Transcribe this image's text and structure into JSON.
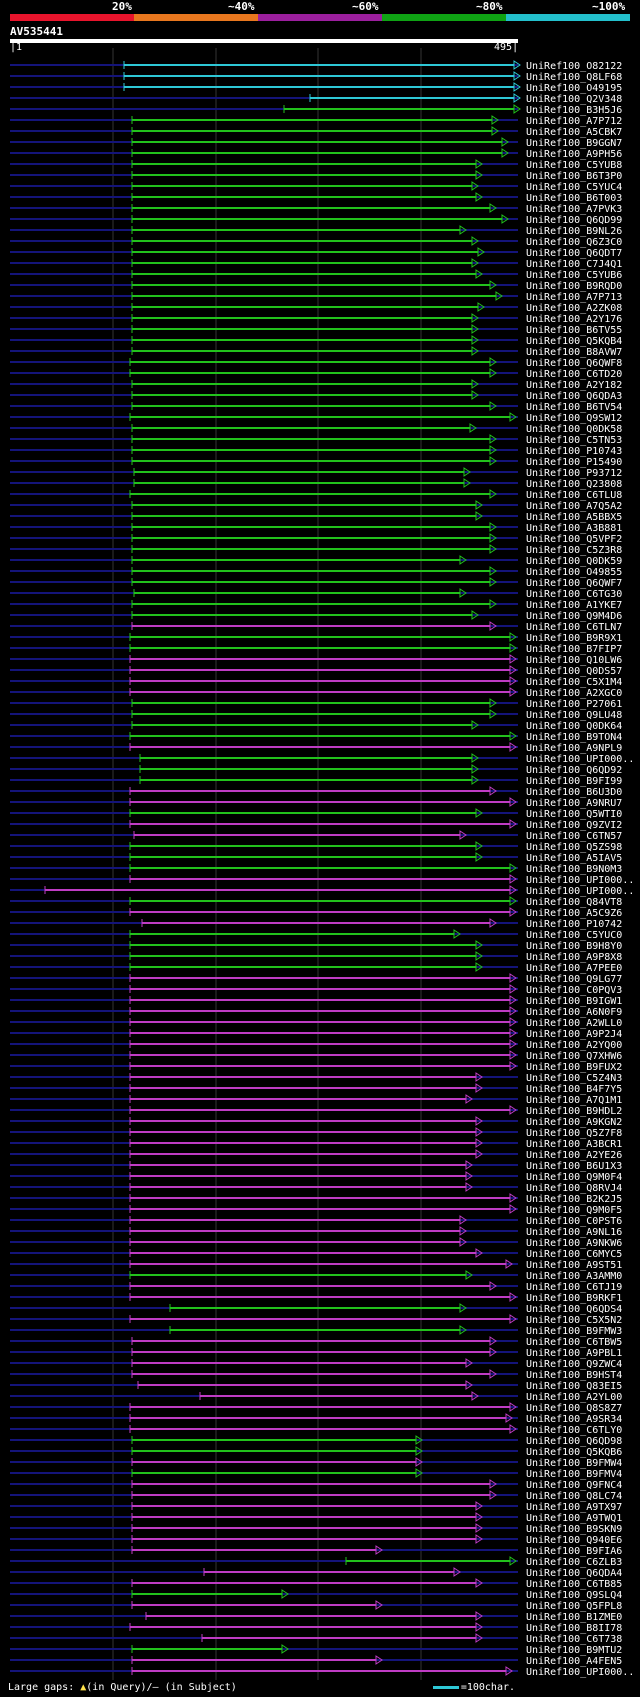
{
  "scale": {
    "labels": [
      "20%",
      "~40%",
      "~60%",
      "~80%",
      "~100%"
    ],
    "colors": [
      "#e8142c",
      "#e8771e",
      "#9c1f9e",
      "#0fa314",
      "#23bfcc"
    ]
  },
  "query": {
    "name": "AV535441",
    "start": "1",
    "end": "495"
  },
  "colors": {
    "cyan": "#2ec8d6",
    "green": "#22c21c",
    "magenta": "#bf3cc4",
    "navy": "#14147a",
    "gap": "#ffe24a",
    "grid": "#333333"
  },
  "hits": [
    {
      "name": "UniRef100_O82122",
      "start": 124,
      "end": 515,
      "color": "cyan",
      "gaps": []
    },
    {
      "name": "UniRef100_Q8LF68",
      "start": 124,
      "end": 515,
      "color": "cyan",
      "gaps": []
    },
    {
      "name": "UniRef100_O49195",
      "start": 124,
      "end": 515,
      "color": "cyan",
      "gaps": []
    },
    {
      "name": "UniRef100_Q2V348",
      "start": 310,
      "end": 515,
      "color": "cyan",
      "gaps": []
    },
    {
      "name": "UniRef100_B3H5J6",
      "start": 284,
      "end": 515,
      "color": "green",
      "gaps": []
    },
    {
      "name": "UniRef100_A7P712",
      "start": 132,
      "end": 492,
      "color": "green",
      "gaps": []
    },
    {
      "name": "UniRef100_A5CBK7",
      "start": 132,
      "end": 492,
      "color": "green",
      "gaps": []
    },
    {
      "name": "UniRef100_B9GGN7",
      "start": 132,
      "end": 502,
      "color": "green",
      "gaps": []
    },
    {
      "name": "UniRef100_A9PH56",
      "start": 132,
      "end": 502,
      "color": "green",
      "gaps": []
    },
    {
      "name": "UniRef100_C5YUB8",
      "start": 132,
      "end": 476,
      "color": "green",
      "gaps": []
    },
    {
      "name": "UniRef100_B6T3P0",
      "start": 132,
      "end": 476,
      "color": "green",
      "gaps": []
    },
    {
      "name": "UniRef100_C5YUC4",
      "start": 132,
      "end": 472,
      "color": "green",
      "gaps": []
    },
    {
      "name": "UniRef100_B6T003",
      "start": 132,
      "end": 476,
      "color": "green",
      "gaps": []
    },
    {
      "name": "UniRef100_A7PVK3",
      "start": 132,
      "end": 490,
      "color": "green",
      "gaps": []
    },
    {
      "name": "UniRef100_Q6QD99",
      "start": 132,
      "end": 502,
      "color": "green",
      "gaps": []
    },
    {
      "name": "UniRef100_B9NL26",
      "start": 132,
      "end": 460,
      "color": "green",
      "gaps": []
    },
    {
      "name": "UniRef100_Q6Z3C0",
      "start": 132,
      "end": 472,
      "color": "green",
      "gaps": []
    },
    {
      "name": "UniRef100_Q6QDT7",
      "start": 132,
      "end": 478,
      "color": "green",
      "gaps": []
    },
    {
      "name": "UniRef100_C7J4Q1",
      "start": 132,
      "end": 472,
      "color": "green",
      "gaps": []
    },
    {
      "name": "UniRef100_C5YUB6",
      "start": 132,
      "end": 476,
      "color": "green",
      "gaps": []
    },
    {
      "name": "UniRef100_B9RQD0",
      "start": 132,
      "end": 490,
      "color": "green",
      "gaps": []
    },
    {
      "name": "UniRef100_A7P713",
      "start": 132,
      "end": 496,
      "color": "green",
      "gaps": []
    },
    {
      "name": "UniRef100_A2ZK08",
      "start": 132,
      "end": 478,
      "color": "green",
      "gaps": []
    },
    {
      "name": "UniRef100_A2Y176",
      "start": 132,
      "end": 472,
      "color": "green",
      "gaps": []
    },
    {
      "name": "UniRef100_B6TV55",
      "start": 132,
      "end": 472,
      "color": "green",
      "gaps": []
    },
    {
      "name": "UniRef100_Q5KQB4",
      "start": 132,
      "end": 472,
      "color": "green",
      "gaps": []
    },
    {
      "name": "UniRef100_B8AVW7",
      "start": 132,
      "end": 472,
      "color": "green",
      "gaps": []
    },
    {
      "name": "UniRef100_Q6QWF8",
      "start": 130,
      "end": 490,
      "color": "green",
      "gaps": []
    },
    {
      "name": "UniRef100_C6TD20",
      "start": 130,
      "end": 490,
      "color": "green",
      "gaps": []
    },
    {
      "name": "UniRef100_A2Y182",
      "start": 132,
      "end": 472,
      "color": "green",
      "gaps": []
    },
    {
      "name": "UniRef100_Q6QDA3",
      "start": 132,
      "end": 472,
      "color": "green",
      "gaps": []
    },
    {
      "name": "UniRef100_B6TV54",
      "start": 132,
      "end": 490,
      "color": "green",
      "gaps": []
    },
    {
      "name": "UniRef100_Q9SW12",
      "start": 130,
      "end": 510,
      "color": "green",
      "gaps": []
    },
    {
      "name": "UniRef100_Q0DK58",
      "start": 132,
      "end": 470,
      "color": "green",
      "gaps": []
    },
    {
      "name": "UniRef100_C5TN53",
      "start": 132,
      "end": 490,
      "color": "green",
      "gaps": []
    },
    {
      "name": "UniRef100_P10743",
      "start": 132,
      "end": 490,
      "color": "green",
      "gaps": []
    },
    {
      "name": "UniRef100_P15490",
      "start": 132,
      "end": 490,
      "color": "green",
      "gaps": []
    },
    {
      "name": "UniRef100_P93712",
      "start": 134,
      "end": 464,
      "color": "green",
      "gaps": []
    },
    {
      "name": "UniRef100_Q23808",
      "start": 134,
      "end": 464,
      "color": "green",
      "gaps": []
    },
    {
      "name": "UniRef100_C6TLU8",
      "start": 130,
      "end": 490,
      "color": "green",
      "gaps": []
    },
    {
      "name": "UniRef100_A7Q5A2",
      "start": 132,
      "end": 476,
      "color": "green",
      "gaps": []
    },
    {
      "name": "UniRef100_A5BBX5",
      "start": 132,
      "end": 476,
      "color": "green",
      "gaps": []
    },
    {
      "name": "UniRef100_A3B881",
      "start": 132,
      "end": 490,
      "color": "green",
      "gaps": []
    },
    {
      "name": "UniRef100_Q5VPF2",
      "start": 132,
      "end": 490,
      "color": "green",
      "gaps": []
    },
    {
      "name": "UniRef100_C5Z3R8",
      "start": 132,
      "end": 490,
      "color": "green",
      "gaps": []
    },
    {
      "name": "UniRef100_Q0DK59",
      "start": 132,
      "end": 460,
      "color": "green",
      "gaps": []
    },
    {
      "name": "UniRef100_O49855",
      "start": 132,
      "end": 490,
      "color": "green",
      "gaps": []
    },
    {
      "name": "UniRef100_Q6QWF7",
      "start": 132,
      "end": 490,
      "color": "green",
      "gaps": []
    },
    {
      "name": "UniRef100_C6TG30",
      "start": 134,
      "end": 460,
      "color": "green",
      "gaps": []
    },
    {
      "name": "UniRef100_A1YKE7",
      "start": 132,
      "end": 490,
      "color": "green",
      "gaps": []
    },
    {
      "name": "UniRef100_Q9M4D6",
      "start": 132,
      "end": 472,
      "color": "green",
      "gaps": []
    },
    {
      "name": "UniRef100_C6TLN7",
      "start": 132,
      "end": 490,
      "color": "magenta",
      "gaps": []
    },
    {
      "name": "UniRef100_B9R9X1",
      "start": 130,
      "end": 510,
      "color": "green",
      "gaps": []
    },
    {
      "name": "UniRef100_B7FIP7",
      "start": 130,
      "end": 510,
      "color": "green",
      "gaps": []
    },
    {
      "name": "UniRef100_Q10LW6",
      "start": 130,
      "end": 510,
      "color": "magenta",
      "gaps": []
    },
    {
      "name": "UniRef100_Q0DS57",
      "start": 130,
      "end": 510,
      "color": "magenta",
      "gaps": []
    },
    {
      "name": "UniRef100_C5X1M4",
      "start": 130,
      "end": 510,
      "color": "magenta",
      "gaps": []
    },
    {
      "name": "UniRef100_A2XGC0",
      "start": 130,
      "end": 510,
      "color": "magenta",
      "gaps": []
    },
    {
      "name": "UniRef100_P27061",
      "start": 132,
      "end": 490,
      "color": "green",
      "gaps": []
    },
    {
      "name": "UniRef100_Q9LU48",
      "start": 132,
      "end": 490,
      "color": "green",
      "gaps": []
    },
    {
      "name": "UniRef100_Q0DK64",
      "start": 132,
      "end": 472,
      "color": "green",
      "gaps": []
    },
    {
      "name": "UniRef100_B9TON4",
      "start": 130,
      "end": 510,
      "color": "green",
      "gaps": []
    },
    {
      "name": "UniRef100_A9NPL9",
      "start": 130,
      "end": 510,
      "color": "magenta",
      "gaps": []
    },
    {
      "name": "UniRef100_UPI000..",
      "start": 140,
      "end": 472,
      "color": "green",
      "gaps": []
    },
    {
      "name": "UniRef100_Q6QD92",
      "start": 140,
      "end": 472,
      "color": "green",
      "gaps": []
    },
    {
      "name": "UniRef100_B9FI99",
      "start": 140,
      "end": 472,
      "color": "green",
      "gaps": []
    },
    {
      "name": "UniRef100_B6U3D0",
      "start": 130,
      "end": 490,
      "color": "magenta",
      "gaps": []
    },
    {
      "name": "UniRef100_A9NRU7",
      "start": 130,
      "end": 510,
      "color": "magenta",
      "gaps": []
    },
    {
      "name": "UniRef100_Q5WTI0",
      "start": 130,
      "end": 476,
      "color": "green",
      "gaps": []
    },
    {
      "name": "UniRef100_Q9ZVI2",
      "start": 130,
      "end": 510,
      "color": "magenta",
      "gaps": []
    },
    {
      "name": "UniRef100_C6TN57",
      "start": 134,
      "end": 460,
      "color": "magenta",
      "gaps": []
    },
    {
      "name": "UniRef100_Q5ZS98",
      "start": 130,
      "end": 476,
      "color": "green",
      "gaps": []
    },
    {
      "name": "UniRef100_A5IAV5",
      "start": 130,
      "end": 476,
      "color": "green",
      "gaps": []
    },
    {
      "name": "UniRef100_B9N0M3",
      "start": 130,
      "end": 510,
      "color": "green",
      "gaps": []
    },
    {
      "name": "UniRef100_UPI000..",
      "start": 130,
      "end": 510,
      "color": "magenta",
      "gaps": []
    },
    {
      "name": "UniRef100_UPI000..",
      "start": 45,
      "end": 510,
      "color": "magenta",
      "gaps": []
    },
    {
      "name": "UniRef100_Q84VT8",
      "start": 130,
      "end": 510,
      "color": "green",
      "gaps": []
    },
    {
      "name": "UniRef100_A5C9Z6",
      "start": 130,
      "end": 510,
      "color": "magenta",
      "gaps": []
    },
    {
      "name": "UniRef100_P10742",
      "start": 142,
      "end": 490,
      "color": "magenta",
      "gaps": []
    },
    {
      "name": "UniRef100_C5YUC0",
      "start": 130,
      "end": 454,
      "color": "green",
      "gaps": []
    },
    {
      "name": "UniRef100_B9H8Y0",
      "start": 130,
      "end": 476,
      "color": "green",
      "gaps": []
    },
    {
      "name": "UniRef100_A9P8X8",
      "start": 130,
      "end": 476,
      "color": "green",
      "gaps": []
    },
    {
      "name": "UniRef100_A7PEE0",
      "start": 130,
      "end": 476,
      "color": "green",
      "gaps": []
    },
    {
      "name": "UniRef100_Q9LG77",
      "start": 130,
      "end": 510,
      "color": "magenta",
      "gaps": []
    },
    {
      "name": "UniRef100_C0PQV3",
      "start": 130,
      "end": 510,
      "color": "magenta",
      "gaps": []
    },
    {
      "name": "UniRef100_B9IGW1",
      "start": 130,
      "end": 510,
      "color": "magenta",
      "gaps": []
    },
    {
      "name": "UniRef100_A6N0F9",
      "start": 130,
      "end": 510,
      "color": "magenta",
      "gaps": []
    },
    {
      "name": "UniRef100_A2WLL0",
      "start": 130,
      "end": 510,
      "color": "magenta",
      "gaps": []
    },
    {
      "name": "UniRef100_A9P2J4",
      "start": 130,
      "end": 510,
      "color": "magenta",
      "gaps": []
    },
    {
      "name": "UniRef100_A2YQ00",
      "start": 130,
      "end": 510,
      "color": "magenta",
      "gaps": []
    },
    {
      "name": "UniRef100_Q7XHW6",
      "start": 130,
      "end": 510,
      "color": "magenta",
      "gaps": []
    },
    {
      "name": "UniRef100_B9FUX2",
      "start": 130,
      "end": 510,
      "color": "magenta",
      "gaps": []
    },
    {
      "name": "UniRef100_C5Z4N3",
      "start": 130,
      "end": 476,
      "color": "magenta",
      "gaps": []
    },
    {
      "name": "UniRef100_B4F7Y5",
      "start": 130,
      "end": 476,
      "color": "magenta",
      "gaps": []
    },
    {
      "name": "UniRef100_A7Q1M1",
      "start": 130,
      "end": 466,
      "color": "magenta",
      "gaps": []
    },
    {
      "name": "UniRef100_B9HDL2",
      "start": 130,
      "end": 510,
      "color": "magenta",
      "gaps": []
    },
    {
      "name": "UniRef100_A9KGN2",
      "start": 130,
      "end": 476,
      "color": "magenta",
      "gaps": []
    },
    {
      "name": "UniRef100_Q5Z7F8",
      "start": 130,
      "end": 476,
      "color": "magenta",
      "gaps": []
    },
    {
      "name": "UniRef100_A3BCR1",
      "start": 130,
      "end": 476,
      "color": "magenta",
      "gaps": []
    },
    {
      "name": "UniRef100_A2YE26",
      "start": 130,
      "end": 476,
      "color": "magenta",
      "gaps": []
    },
    {
      "name": "UniRef100_B6U1X3",
      "start": 130,
      "end": 466,
      "color": "magenta",
      "gaps": []
    },
    {
      "name": "UniRef100_Q9M0F4",
      "start": 130,
      "end": 466,
      "color": "magenta",
      "gaps": []
    },
    {
      "name": "UniRef100_Q8RVJ4",
      "start": 130,
      "end": 466,
      "color": "magenta",
      "gaps": []
    },
    {
      "name": "UniRef100_B2K2J5",
      "start": 130,
      "end": 510,
      "color": "magenta",
      "gaps": []
    },
    {
      "name": "UniRef100_Q9M0F5",
      "start": 130,
      "end": 510,
      "color": "magenta",
      "gaps": []
    },
    {
      "name": "UniRef100_C0PST6",
      "start": 130,
      "end": 460,
      "color": "magenta",
      "gaps": []
    },
    {
      "name": "UniRef100_A9NL16",
      "start": 130,
      "end": 460,
      "color": "magenta",
      "gaps": []
    },
    {
      "name": "UniRef100_A9NKW6",
      "start": 130,
      "end": 460,
      "color": "magenta",
      "gaps": []
    },
    {
      "name": "UniRef100_C6MYC5",
      "start": 130,
      "end": 476,
      "color": "magenta",
      "gaps": []
    },
    {
      "name": "UniRef100_A9ST51",
      "start": 130,
      "end": 506,
      "color": "magenta",
      "gaps": []
    },
    {
      "name": "UniRef100_A3AMM0",
      "start": 130,
      "end": 466,
      "color": "green",
      "gaps": []
    },
    {
      "name": "UniRef100_C6TJ19",
      "start": 130,
      "end": 490,
      "color": "magenta",
      "gaps": []
    },
    {
      "name": "UniRef100_B9RKF1",
      "start": 130,
      "end": 510,
      "color": "magenta",
      "gaps": []
    },
    {
      "name": "UniRef100_Q6QDS4",
      "start": 170,
      "end": 460,
      "color": "green",
      "gaps": []
    },
    {
      "name": "UniRef100_C5X5N2",
      "start": 130,
      "end": 510,
      "color": "magenta",
      "gaps": []
    },
    {
      "name": "UniRef100_B9FMW3",
      "start": 170,
      "end": 460,
      "color": "green",
      "gaps": []
    },
    {
      "name": "UniRef100_C6TBW5",
      "start": 132,
      "end": 490,
      "color": "magenta",
      "gaps": []
    },
    {
      "name": "UniRef100_A9PBL1",
      "start": 132,
      "end": 490,
      "color": "magenta",
      "gaps": []
    },
    {
      "name": "UniRef100_Q9ZWC4",
      "start": 132,
      "end": 466,
      "color": "magenta",
      "gaps": []
    },
    {
      "name": "UniRef100_B9HST4",
      "start": 132,
      "end": 490,
      "color": "magenta",
      "gaps": []
    },
    {
      "name": "UniRef100_Q83EI5",
      "start": 138,
      "end": 466,
      "color": "magenta",
      "gaps": []
    },
    {
      "name": "UniRef100_A2YL00",
      "start": 200,
      "end": 472,
      "color": "magenta",
      "gaps": []
    },
    {
      "name": "UniRef100_Q8S8Z7",
      "start": 130,
      "end": 510,
      "color": "magenta",
      "gaps": []
    },
    {
      "name": "UniRef100_A9SR34",
      "start": 130,
      "end": 506,
      "color": "magenta",
      "gaps": []
    },
    {
      "name": "UniRef100_C6TLY0",
      "start": 130,
      "end": 510,
      "color": "magenta",
      "gaps": []
    },
    {
      "name": "UniRef100_Q6QD98",
      "start": 132,
      "end": 416,
      "color": "green",
      "gaps": []
    },
    {
      "name": "UniRef100_Q5KQB6",
      "start": 132,
      "end": 416,
      "color": "green",
      "gaps": []
    },
    {
      "name": "UniRef100_B9FMW4",
      "start": 132,
      "end": 416,
      "color": "magenta",
      "gaps": []
    },
    {
      "name": "UniRef100_B9FMV4",
      "start": 132,
      "end": 416,
      "color": "green",
      "gaps": []
    },
    {
      "name": "UniRef100_Q9FNC4",
      "start": 132,
      "end": 490,
      "color": "magenta",
      "gaps": []
    },
    {
      "name": "UniRef100_Q8LC74",
      "start": 132,
      "end": 490,
      "color": "magenta",
      "gaps": []
    },
    {
      "name": "UniRef100_A9TX97",
      "start": 132,
      "end": 476,
      "color": "magenta",
      "gaps": []
    },
    {
      "name": "UniRef100_A9TWQ1",
      "start": 132,
      "end": 476,
      "color": "magenta",
      "gaps": []
    },
    {
      "name": "UniRef100_B9SKN9",
      "start": 132,
      "end": 476,
      "color": "magenta",
      "gaps": []
    },
    {
      "name": "UniRef100_Q940E6",
      "start": 132,
      "end": 476,
      "color": "magenta",
      "gaps": []
    },
    {
      "name": "UniRef100_B9FIA6",
      "start": 132,
      "end": 376,
      "color": "magenta",
      "gaps": []
    },
    {
      "name": "UniRef100_C6ZLB3",
      "start": 346,
      "end": 510,
      "color": "green",
      "gaps": []
    },
    {
      "name": "UniRef100_Q6QDA4",
      "start": 204,
      "end": 454,
      "color": "magenta",
      "gaps": []
    },
    {
      "name": "UniRef100_C6TB85",
      "start": 132,
      "end": 476,
      "color": "magenta",
      "gaps": []
    },
    {
      "name": "UniRef100_Q9SLQ4",
      "start": 132,
      "end": 282,
      "color": "green",
      "gaps": []
    },
    {
      "name": "UniRef100_Q5FPL8",
      "start": 132,
      "end": 376,
      "color": "magenta",
      "gaps": []
    },
    {
      "name": "UniRef100_B1ZME0",
      "start": 146,
      "end": 476,
      "color": "magenta",
      "gaps": []
    },
    {
      "name": "UniRef100_B8II78",
      "start": 130,
      "end": 476,
      "color": "magenta",
      "gaps": []
    },
    {
      "name": "UniRef100_C6T738",
      "start": 202,
      "end": 476,
      "color": "magenta",
      "gaps": []
    },
    {
      "name": "UniRef100_B9MTU2",
      "start": 132,
      "end": 282,
      "color": "green",
      "gaps": []
    },
    {
      "name": "UniRef100_A4FEN5",
      "start": 132,
      "end": 376,
      "color": "magenta",
      "gaps": []
    },
    {
      "name": "UniRef100_UPI000..",
      "start": 132,
      "end": 506,
      "color": "magenta",
      "gaps": []
    }
  ],
  "footer": {
    "text": "Large gaps: ",
    "query_glyph": "▲",
    "query_text": "(in Query)/",
    "subject_glyph": "–",
    "subject_text": " (in Subject)",
    "legend": "=100char."
  }
}
